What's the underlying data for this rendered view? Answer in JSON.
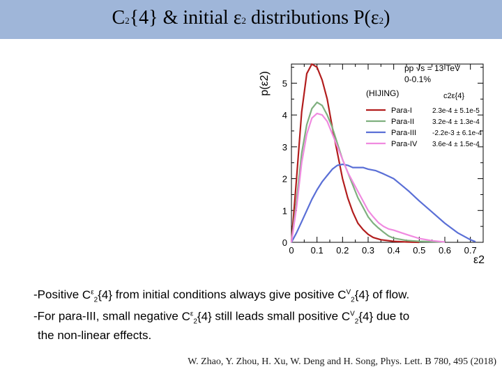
{
  "slide": {
    "title_main": "C",
    "title_sub1": "2",
    "title_mid": "{4} & initial ε",
    "title_sub2": "2",
    "title_tail": " distributions P(ε",
    "title_sub3": "2",
    "title_close": ")"
  },
  "bullets": {
    "line1_a": "-Positive ",
    "line1_b": " from initial conditions always give positive ",
    "line1_c": " of flow.",
    "line2_a": "-For para-III, small negative ",
    "line2_b": " still leads small positive ",
    "line2_c": " due to",
    "line3": "the non-linear effects.",
    "c_eps_label": "C",
    "c_eps_sub": "2",
    "c_eps_sup": "ε",
    "c_eps_tail": "{4}",
    "c_v_label": "C",
    "c_v_sub": "2",
    "c_v_sup": "V",
    "c_v_tail": "{4}"
  },
  "citation": "W. Zhao, Y. Zhou, H. Xu, W. Deng and H. Song, Phys. Lett. B 780, 495 (2018)",
  "chart_data": {
    "type": "line",
    "ylabel": "p(ε2)",
    "xlabel": "ε2",
    "xlim": [
      0,
      0.75
    ],
    "ylim": [
      0,
      5.6
    ],
    "xticks": [
      0,
      0.1,
      0.2,
      0.3,
      0.4,
      0.5,
      0.6,
      0.7
    ],
    "xtick_labels": [
      "0",
      "0.1",
      "0.2",
      "0.3",
      "0.4",
      "0.5",
      "0.6",
      "0.7"
    ],
    "yticks": [
      0,
      1,
      2,
      3,
      4,
      5
    ],
    "ytick_labels": [
      "0",
      "1",
      "2",
      "3",
      "4",
      "5"
    ],
    "annotation_lines": [
      "pp √s = 13 TeV",
      "0-0.1%",
      "(HIJING)"
    ],
    "legend_header": "c2ε{4}",
    "legend_position": "right",
    "series": [
      {
        "name": "Para-I",
        "value_label": "2.3e-4 ± 5.1e-5",
        "color": "#b21d1d",
        "x": [
          0,
          0.02,
          0.04,
          0.06,
          0.08,
          0.1,
          0.12,
          0.14,
          0.16,
          0.18,
          0.2,
          0.22,
          0.24,
          0.26,
          0.28,
          0.3,
          0.32,
          0.35,
          0.4,
          0.45,
          0.5
        ],
        "y": [
          0,
          2.0,
          4.1,
          5.3,
          5.6,
          5.5,
          5.1,
          4.5,
          3.6,
          2.8,
          2.0,
          1.4,
          0.95,
          0.6,
          0.4,
          0.25,
          0.15,
          0.08,
          0.03,
          0.01,
          0
        ]
      },
      {
        "name": "Para-II",
        "value_label": "3.2e-4 ± 1.3e-4",
        "color": "#7fb07f",
        "x": [
          0,
          0.02,
          0.04,
          0.06,
          0.08,
          0.1,
          0.12,
          0.14,
          0.16,
          0.18,
          0.2,
          0.22,
          0.24,
          0.26,
          0.28,
          0.3,
          0.32,
          0.34,
          0.36,
          0.38,
          0.4,
          0.45,
          0.5,
          0.6
        ],
        "y": [
          0,
          1.3,
          2.8,
          3.7,
          4.2,
          4.4,
          4.3,
          4.0,
          3.6,
          3.1,
          2.6,
          2.2,
          1.8,
          1.4,
          1.1,
          0.8,
          0.6,
          0.45,
          0.32,
          0.2,
          0.13,
          0.06,
          0.03,
          0.01
        ]
      },
      {
        "name": "Para-III",
        "value_label": "-2.2e-3 ± 6.1e-4",
        "color": "#5a6fd6",
        "x": [
          0,
          0.02,
          0.04,
          0.06,
          0.08,
          0.1,
          0.12,
          0.14,
          0.16,
          0.18,
          0.2,
          0.22,
          0.24,
          0.26,
          0.28,
          0.3,
          0.33,
          0.36,
          0.4,
          0.43,
          0.46,
          0.5,
          0.55,
          0.6,
          0.65,
          0.7,
          0.72
        ],
        "y": [
          0,
          0.3,
          0.65,
          1.0,
          1.35,
          1.65,
          1.9,
          2.1,
          2.3,
          2.42,
          2.45,
          2.42,
          2.35,
          2.35,
          2.35,
          2.3,
          2.25,
          2.15,
          2.0,
          1.8,
          1.6,
          1.3,
          0.95,
          0.6,
          0.3,
          0.08,
          0.02
        ]
      },
      {
        "name": "Para-IV",
        "value_label": "3.6e-4 ± 1.5e-4",
        "color": "#f08ae0",
        "x": [
          0,
          0.02,
          0.04,
          0.06,
          0.08,
          0.1,
          0.12,
          0.14,
          0.16,
          0.18,
          0.2,
          0.22,
          0.24,
          0.26,
          0.28,
          0.3,
          0.32,
          0.34,
          0.36,
          0.38,
          0.4,
          0.43,
          0.46,
          0.5,
          0.55,
          0.6
        ],
        "y": [
          0,
          1.1,
          2.5,
          3.4,
          3.9,
          4.05,
          4.0,
          3.8,
          3.4,
          3.0,
          2.6,
          2.2,
          1.9,
          1.6,
          1.3,
          1.0,
          0.8,
          0.62,
          0.5,
          0.42,
          0.38,
          0.3,
          0.22,
          0.12,
          0.05,
          0.01
        ]
      }
    ]
  }
}
